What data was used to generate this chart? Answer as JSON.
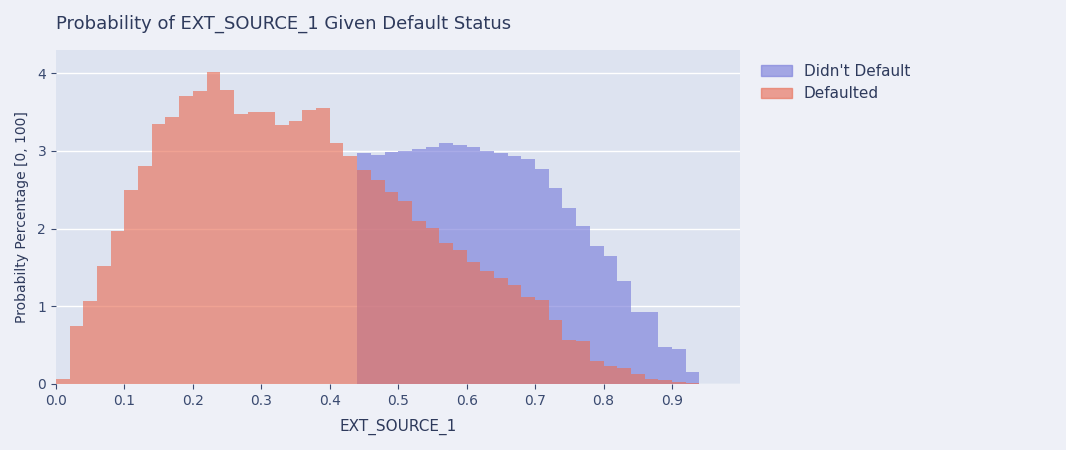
{
  "title": "Probability of EXT_SOURCE_1 Given Default Status",
  "xlabel": "EXT_SOURCE_1",
  "ylabel": "Probabilty Percentage [0, 100]",
  "xlim": [
    0,
    1.0
  ],
  "ylim": [
    0,
    4.3
  ],
  "background_color": "#dde3f0",
  "fig_background": "#eef0f7",
  "didnt_default_color": "#7b7fdb",
  "defaulted_color": "#e8705a",
  "didnt_default_alpha": 0.65,
  "defaulted_alpha": 0.65,
  "legend_labels": [
    "Didn't Default",
    "Defaulted"
  ],
  "bin_edges": [
    0.0,
    0.02,
    0.04,
    0.06,
    0.08,
    0.1,
    0.12,
    0.14,
    0.16,
    0.18,
    0.2,
    0.22,
    0.24,
    0.26,
    0.28,
    0.3,
    0.32,
    0.34,
    0.36,
    0.38,
    0.4,
    0.42,
    0.44,
    0.46,
    0.48,
    0.5,
    0.52,
    0.54,
    0.56,
    0.58,
    0.6,
    0.62,
    0.64,
    0.66,
    0.68,
    0.7,
    0.72,
    0.74,
    0.76,
    0.78,
    0.8,
    0.82,
    0.84,
    0.86,
    0.88,
    0.9,
    0.92,
    0.94,
    0.96
  ],
  "defaulted_heights": [
    0.07,
    0.75,
    1.07,
    1.52,
    1.97,
    2.5,
    2.8,
    3.35,
    3.43,
    3.7,
    3.77,
    4.02,
    3.78,
    3.48,
    3.5,
    3.5,
    3.33,
    3.38,
    3.52,
    3.55,
    3.1,
    2.93,
    2.75,
    2.62,
    2.47,
    2.36,
    2.1,
    2.01,
    1.82,
    1.72,
    1.57,
    1.46,
    1.37,
    1.27,
    1.12,
    1.08,
    0.82,
    0.57,
    0.55,
    0.3,
    0.23,
    0.2,
    0.13,
    0.07,
    0.05,
    0.02,
    0.01,
    0.0
  ],
  "didnt_default_heights": [
    0.0,
    0.0,
    0.0,
    0.0,
    0.0,
    0.0,
    0.0,
    0.0,
    0.0,
    0.0,
    0.0,
    0.0,
    0.0,
    0.0,
    0.0,
    0.0,
    0.0,
    0.0,
    0.0,
    0.0,
    0.0,
    0.0,
    2.97,
    2.95,
    2.98,
    3.0,
    3.03,
    3.05,
    3.1,
    3.08,
    3.05,
    3.0,
    2.97,
    2.93,
    2.9,
    2.77,
    2.52,
    2.27,
    2.03,
    1.77,
    1.65,
    1.32,
    0.93,
    0.93,
    0.47,
    0.45,
    0.15,
    0.0
  ],
  "yticks": [
    0,
    1,
    2,
    3,
    4
  ],
  "xticks": [
    0.0,
    0.1,
    0.2,
    0.3,
    0.4,
    0.5,
    0.6,
    0.7,
    0.8,
    0.9
  ]
}
